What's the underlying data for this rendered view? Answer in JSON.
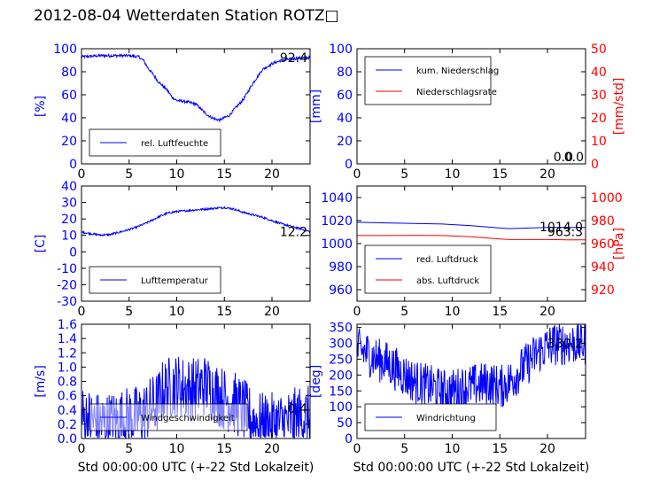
{
  "title": "2012-08-04 Wetterdaten Station ROTZ□",
  "xlabel": "Std 00:00:00 UTC (+-22 Std Lokalzeit)",
  "colors": {
    "primary": "#0000ff",
    "secondary": "#ff0000",
    "axis": "#000000"
  },
  "chart_data": [
    {
      "type": "line",
      "ylabel": "[%]",
      "xlim": [
        0,
        24
      ],
      "ylim": [
        0,
        100
      ],
      "xticks": [
        0,
        5,
        10,
        15,
        20
      ],
      "yticks": [
        0,
        20,
        40,
        60,
        80,
        100
      ],
      "legend_position": "lower-left",
      "annotation": "92.4",
      "series": [
        {
          "name": "rel. Luftfeuchte",
          "color": "#0000ff",
          "noise": 1.2,
          "x": [
            0,
            1,
            2,
            3,
            4,
            5,
            6,
            6.5,
            7,
            7.5,
            8,
            8.5,
            9,
            9.5,
            10,
            11,
            12,
            12.5,
            13,
            13.5,
            14,
            14.5,
            15,
            15.5,
            16,
            17,
            18,
            19,
            20,
            21,
            22,
            23,
            24
          ],
          "y": [
            93,
            93.5,
            94,
            94,
            94,
            94,
            93,
            90,
            83,
            78,
            72,
            68,
            64,
            58,
            55,
            54,
            52,
            48,
            44,
            41,
            39,
            38,
            40,
            42,
            47,
            56,
            70,
            82,
            87,
            90,
            91,
            92,
            92.4
          ]
        }
      ]
    },
    {
      "type": "line",
      "ylabel": "[mm]",
      "ylabel_right": "[mm/std]",
      "xlim": [
        0,
        24
      ],
      "ylim": [
        0,
        100
      ],
      "ylim_right": [
        0,
        50
      ],
      "xticks": [
        0,
        5,
        10,
        15,
        20
      ],
      "yticks": [
        0,
        20,
        40,
        60,
        80,
        100
      ],
      "yticks_right": [
        0,
        10,
        20,
        30,
        40,
        50
      ],
      "legend_position": "upper-left",
      "annotations": [
        "0.0",
        "0.0"
      ],
      "series": [
        {
          "name": "kum. Niederschlag",
          "color": "#0000ff",
          "x": [
            0,
            24
          ],
          "y": [
            0,
            0
          ]
        },
        {
          "name": "Niederschlagsrate",
          "color": "#ff0000",
          "axis": "right",
          "x": [
            0,
            24
          ],
          "y": [
            0,
            0
          ]
        }
      ]
    },
    {
      "type": "line",
      "ylabel": "[C]",
      "xlim": [
        0,
        24
      ],
      "ylim": [
        -30,
        40
      ],
      "xticks": [
        0,
        5,
        10,
        15,
        20
      ],
      "yticks": [
        -30,
        -20,
        -10,
        0,
        10,
        20,
        30,
        40
      ],
      "legend_position": "lower-left",
      "annotation": "12.2",
      "series": [
        {
          "name": "Lufttemperatur",
          "color": "#0000ff",
          "noise": 0.6,
          "x": [
            0,
            1,
            2,
            3,
            4,
            5,
            6,
            7,
            8,
            9,
            10,
            11,
            12,
            13,
            14,
            15,
            16,
            17,
            18,
            19,
            20,
            21,
            22,
            23,
            24
          ],
          "y": [
            12,
            11,
            10.2,
            10.5,
            12,
            13.5,
            15.5,
            18,
            21,
            23.5,
            24.5,
            25,
            25.5,
            26,
            26.5,
            27,
            26,
            24,
            22.5,
            21,
            19,
            17,
            15.5,
            14,
            12.2
          ]
        }
      ]
    },
    {
      "type": "line",
      "ylabel_right": "[hPa]",
      "xlim": [
        0,
        24
      ],
      "ylim": [
        950,
        1050
      ],
      "ylim_right": [
        910,
        1010
      ],
      "xticks": [
        0,
        5,
        10,
        15,
        20
      ],
      "yticks": [
        960,
        980,
        1000,
        1020,
        1040
      ],
      "yticks_right": [
        920,
        940,
        960,
        980,
        1000
      ],
      "legend_position": "lower-left",
      "annotations": [
        "1014.0",
        "963.3"
      ],
      "series": [
        {
          "name": "red. Luftdruck",
          "color": "#0000ff",
          "x": [
            0,
            3,
            6,
            9,
            12,
            15,
            16,
            18,
            20,
            22,
            24
          ],
          "y": [
            1018.5,
            1018,
            1017.5,
            1017,
            1015.5,
            1013.5,
            1013,
            1013.5,
            1014,
            1014,
            1014
          ]
        },
        {
          "name": "abs. Luftdruck",
          "color": "#ff0000",
          "axis": "right",
          "x": [
            0,
            3,
            6,
            9,
            12,
            15,
            16,
            18,
            20,
            22,
            24
          ],
          "y": [
            967,
            967,
            967.2,
            967,
            966,
            964,
            963.5,
            963.5,
            963.5,
            963.3,
            963.3
          ]
        }
      ]
    },
    {
      "type": "line",
      "ylabel": "[m/s]",
      "xlim": [
        0,
        24
      ],
      "ylim": [
        0,
        1.6
      ],
      "xticks": [
        0,
        5,
        10,
        15,
        20
      ],
      "yticks": [
        0.0,
        0.2,
        0.4,
        0.6,
        0.8,
        1.0,
        1.2,
        1.4,
        1.6
      ],
      "legend_position": "lower-left",
      "annotation": "0.4",
      "series": [
        {
          "name": "Windgeschwindigkeit",
          "color": "#0000ff",
          "noise": 0.45,
          "x": [
            0,
            1,
            2,
            3,
            4,
            5,
            6,
            7,
            8,
            8.5,
            9,
            10,
            11,
            12,
            13,
            14,
            15,
            16,
            17,
            18,
            19,
            20,
            21,
            22,
            23,
            24
          ],
          "y": [
            0.3,
            0.25,
            0.2,
            0.22,
            0.25,
            0.3,
            0.3,
            0.4,
            0.5,
            0.65,
            0.7,
            0.75,
            0.7,
            0.7,
            0.75,
            0.65,
            0.55,
            0.5,
            0.4,
            0.25,
            0.2,
            0.2,
            0.22,
            0.25,
            0.3,
            0.3
          ]
        }
      ]
    },
    {
      "type": "line",
      "ylabel": "[deg]",
      "xlim": [
        0,
        24
      ],
      "ylim": [
        0,
        360
      ],
      "xticks": [
        0,
        5,
        10,
        15,
        20
      ],
      "yticks": [
        0,
        50,
        100,
        150,
        200,
        250,
        300,
        350
      ],
      "legend_position": "lower-left",
      "annotation": "330.2",
      "series": [
        {
          "name": "Windrichtung",
          "color": "#0000ff",
          "noise": 70,
          "x": [
            0,
            1,
            2,
            3,
            4,
            5,
            6,
            7,
            8,
            9,
            10,
            11,
            12,
            13,
            14,
            15,
            16,
            17,
            18,
            19,
            20,
            21,
            22,
            23,
            24
          ],
          "y": [
            280,
            270,
            250,
            240,
            220,
            200,
            180,
            170,
            160,
            150,
            150,
            160,
            165,
            170,
            175,
            160,
            180,
            210,
            240,
            270,
            290,
            300,
            300,
            300,
            300
          ]
        }
      ]
    }
  ]
}
